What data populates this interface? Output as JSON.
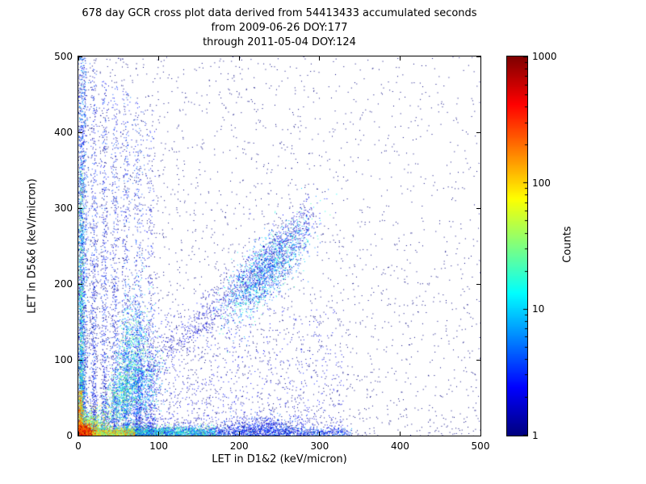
{
  "chart_data": {
    "type": "scatter",
    "title": "678 day GCR cross plot data derived from 54413433 accumulated seconds",
    "subtitle": [
      "from 2009-06-26 DOY:177",
      "through 2011-05-04 DOY:124"
    ],
    "xlabel": "LET in D1&2 (keV/micron)",
    "ylabel": "LET in D5&6 (keV/micron)",
    "xlim": [
      0,
      500
    ],
    "ylim": [
      0,
      500
    ],
    "xticks": [
      0,
      100,
      200,
      300,
      400,
      500
    ],
    "yticks": [
      0,
      100,
      200,
      300,
      400,
      500
    ],
    "grid": false,
    "background_color": "#ffffff",
    "point_color_low": "#000080",
    "colorbar": {
      "label": "Counts",
      "scale": "log",
      "range": [
        1,
        1000
      ],
      "ticks": [
        1,
        10,
        100,
        1000
      ],
      "colormap": "jet"
    },
    "density_model": {
      "seed": 1234,
      "clusters": [
        {
          "kind": "biased",
          "n": 3200,
          "xmin": 0,
          "xmax": 500,
          "xexp": 1.6,
          "ymin": 0,
          "ymax": 500,
          "yexp": 1.3,
          "cmin": 1,
          "cmax": 1
        },
        {
          "kind": "diag",
          "n": 900,
          "x0": 30,
          "x1": 290,
          "texp": 0.65,
          "spread": 15,
          "cmin": 1,
          "cmax": 3
        },
        {
          "kind": "biased",
          "n": 1300,
          "xmin": 70,
          "xmax": 330,
          "xexp": 1.3,
          "ymin": 5,
          "ymax": 170,
          "yexp": 1.9,
          "cmin": 1,
          "cmax": 3
        },
        {
          "kind": "hband",
          "n": 1600,
          "yc": 4,
          "ys": 4,
          "xmin": 60,
          "xmax": 340,
          "xexp": 1.4,
          "cmin": 1,
          "cmax": 8
        },
        {
          "kind": "column",
          "n": 750,
          "xc": 19,
          "xs": 2.2,
          "ymax": 485,
          "yexp": 2.4,
          "cmin": 1,
          "cmax": 5
        },
        {
          "kind": "column",
          "n": 650,
          "xc": 32,
          "xs": 2.4,
          "ymax": 470,
          "yexp": 2.4,
          "cmin": 1,
          "cmax": 5
        },
        {
          "kind": "column",
          "n": 600,
          "xc": 45,
          "xs": 2.6,
          "ymax": 462,
          "yexp": 2.5,
          "cmin": 1,
          "cmax": 5
        },
        {
          "kind": "column",
          "n": 650,
          "xc": 59,
          "xs": 3.0,
          "ymax": 455,
          "yexp": 2.6,
          "cmin": 1,
          "cmax": 6
        },
        {
          "kind": "column",
          "n": 700,
          "xc": 74,
          "xs": 3.4,
          "ymax": 445,
          "yexp": 2.7,
          "cmin": 1,
          "cmax": 6
        },
        {
          "kind": "column",
          "n": 450,
          "xc": 89,
          "xs": 3.5,
          "ymax": 430,
          "yexp": 2.7,
          "cmin": 1,
          "cmax": 4
        },
        {
          "kind": "column",
          "n": 2600,
          "xc": 4,
          "xs": 3.5,
          "ymax": 500,
          "yexp": 2.0,
          "cmin": 1,
          "cmax": 10
        },
        {
          "kind": "blob",
          "n": 1700,
          "xc": 233,
          "yc": 218,
          "xs": 26,
          "ys": 32,
          "corr": 0.75,
          "cmin": 1,
          "cmax": 25
        },
        {
          "kind": "blob",
          "n": 500,
          "xc": 228,
          "yc": 12,
          "xs": 26,
          "ys": 8,
          "corr": 0,
          "cmin": 1,
          "cmax": 6
        },
        {
          "kind": "blob",
          "n": 900,
          "xc": 66,
          "yc": 105,
          "xs": 10,
          "ys": 40,
          "corr": 0.3,
          "cmin": 2,
          "cmax": 40
        },
        {
          "kind": "blob",
          "n": 700,
          "xc": 52,
          "yc": 55,
          "xs": 10,
          "ys": 25,
          "corr": 0.4,
          "cmin": 3,
          "cmax": 60
        },
        {
          "kind": "blob",
          "n": 500,
          "xc": 80,
          "yc": 60,
          "xs": 12,
          "ys": 25,
          "corr": 0.4,
          "cmin": 2,
          "cmax": 30
        },
        {
          "kind": "column",
          "n": 1000,
          "xc": 3,
          "xs": 2.0,
          "ymax": 350,
          "yexp": 2.2,
          "cmin": 5,
          "cmax": 60
        },
        {
          "kind": "hband",
          "n": 1300,
          "yc": 5,
          "ys": 4.5,
          "xmin": 20,
          "xmax": 170,
          "xexp": 1.2,
          "cmin": 4,
          "cmax": 50
        },
        {
          "kind": "blob",
          "n": 1200,
          "xc": 10,
          "yc": 10,
          "xs": 12,
          "ys": 12,
          "corr": 0.2,
          "cmin": 10,
          "cmax": 150
        },
        {
          "kind": "hband",
          "n": 900,
          "yc": 4,
          "ys": 3.5,
          "xmin": 4,
          "xmax": 70,
          "xexp": 1.1,
          "cmin": 20,
          "cmax": 300
        },
        {
          "kind": "column",
          "n": 450,
          "xc": 2,
          "xs": 1.8,
          "ymax": 60,
          "yexp": 1.4,
          "cmin": 40,
          "cmax": 400
        },
        {
          "kind": "blob",
          "n": 1500,
          "xc": 4,
          "yc": 4,
          "xs": 6,
          "ys": 6,
          "corr": 0.1,
          "cmin": 100,
          "cmax": 1000
        }
      ]
    }
  }
}
